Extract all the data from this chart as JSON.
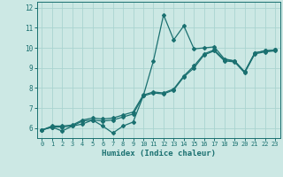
{
  "xlabel": "Humidex (Indice chaleur)",
  "bg_color": "#cce8e4",
  "grid_color": "#aad4d0",
  "line_color": "#1a7070",
  "xlim": [
    -0.5,
    23.5
  ],
  "ylim": [
    5.5,
    12.3
  ],
  "xticks": [
    0,
    1,
    2,
    3,
    4,
    5,
    6,
    7,
    8,
    9,
    10,
    11,
    12,
    13,
    14,
    15,
    16,
    17,
    18,
    19,
    20,
    21,
    22,
    23
  ],
  "yticks": [
    6,
    7,
    8,
    9,
    10,
    11,
    12
  ],
  "line1_x": [
    0,
    1,
    2,
    3,
    4,
    5,
    6,
    7,
    8,
    9,
    10,
    11,
    12,
    13,
    14,
    15,
    16,
    17,
    18,
    19,
    20,
    21,
    22,
    23
  ],
  "line1_y": [
    5.9,
    6.05,
    5.85,
    6.1,
    6.2,
    6.4,
    6.1,
    5.75,
    6.1,
    6.3,
    7.6,
    9.35,
    11.65,
    10.4,
    11.1,
    9.95,
    10.0,
    10.05,
    9.45,
    9.35,
    8.8,
    9.75,
    9.85,
    9.9
  ],
  "line2_x": [
    0,
    1,
    2,
    3,
    4,
    5,
    6,
    7,
    8,
    9,
    10,
    11,
    12,
    13,
    14,
    15,
    16,
    17,
    18,
    19,
    20,
    21,
    22,
    23
  ],
  "line2_y": [
    5.9,
    6.05,
    6.05,
    6.1,
    6.35,
    6.4,
    6.35,
    6.4,
    6.55,
    6.7,
    7.6,
    7.75,
    7.7,
    7.9,
    8.55,
    9.0,
    9.65,
    9.85,
    9.35,
    9.3,
    8.75,
    9.7,
    9.8,
    9.85
  ],
  "line3_x": [
    0,
    1,
    2,
    3,
    4,
    5,
    6,
    7,
    8,
    9,
    10,
    11,
    12,
    13,
    14,
    15,
    16,
    17,
    18,
    19,
    20,
    21,
    22,
    23
  ],
  "line3_y": [
    5.9,
    6.1,
    6.1,
    6.15,
    6.4,
    6.5,
    6.45,
    6.5,
    6.65,
    6.8,
    7.65,
    7.8,
    7.75,
    7.95,
    8.6,
    9.1,
    9.7,
    9.9,
    9.4,
    9.35,
    8.8,
    9.75,
    9.85,
    9.9
  ],
  "font_name": "monospace"
}
